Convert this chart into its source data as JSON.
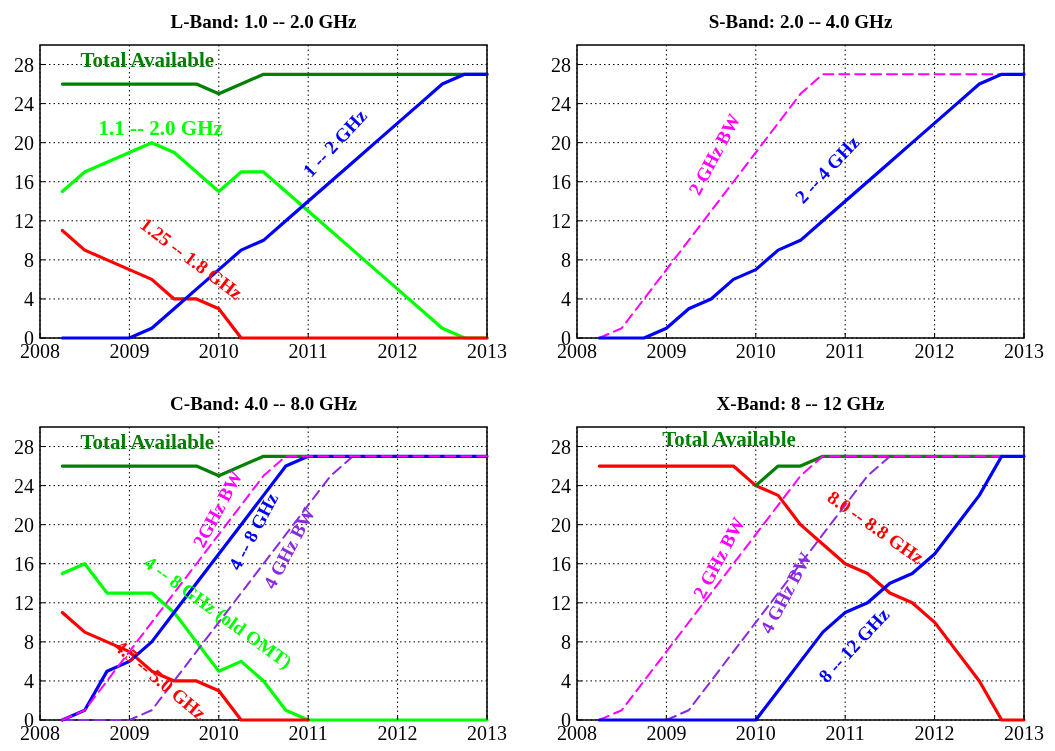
{
  "chart_data": [
    {
      "type": "line",
      "title": "L-Band:  1.0 -- 2.0 GHz",
      "x": [
        2008.25,
        2008.5,
        2008.75,
        2009,
        2009.25,
        2009.5,
        2009.75,
        2010,
        2010.25,
        2010.5,
        2010.75,
        2011,
        2011.25,
        2011.5,
        2011.75,
        2012,
        2012.25,
        2012.5,
        2012.75,
        2013
      ],
      "xlim": [
        2008,
        2013
      ],
      "ylim": [
        0,
        30
      ],
      "xticks": [
        2008,
        2009,
        2010,
        2011,
        2012,
        2013
      ],
      "yticks": [
        0,
        4,
        8,
        12,
        16,
        20,
        24,
        28
      ],
      "grid": true,
      "legend": false,
      "series": [
        {
          "name": "Total Available",
          "color": "#008000",
          "x": [
            2008.25,
            2009.75,
            2010,
            2010.5,
            2013
          ],
          "values": [
            26,
            26,
            25,
            27,
            27
          ]
        },
        {
          "name": "1.1 -- 2.0 GHz",
          "color": "#00ff00",
          "values": [
            15,
            17,
            18,
            19,
            20,
            19,
            17,
            15,
            17,
            17,
            15,
            13,
            11,
            9,
            7,
            5,
            3,
            1,
            0,
            0
          ]
        },
        {
          "name": "1.25 -- 1.8 GHz",
          "color": "#ff0000",
          "values": [
            11,
            9,
            8,
            7,
            6,
            4,
            4,
            3,
            0,
            0,
            0,
            0,
            0,
            0,
            0,
            0,
            0,
            0,
            0,
            0
          ]
        },
        {
          "name": "1 -- 2 GHz",
          "color": "#0000ff",
          "values": [
            0,
            0,
            0,
            0,
            1,
            3,
            5,
            7,
            9,
            10,
            12,
            14,
            16,
            18,
            20,
            22,
            24,
            26,
            27,
            27
          ]
        }
      ]
    },
    {
      "type": "line",
      "title": "S-Band:  2.0 -- 4.0 GHz",
      "x": [
        2008.25,
        2008.5,
        2008.75,
        2009,
        2009.25,
        2009.5,
        2009.75,
        2010,
        2010.25,
        2010.5,
        2010.75,
        2011,
        2011.25,
        2011.5,
        2011.75,
        2012,
        2012.25,
        2012.5,
        2012.75,
        2013
      ],
      "xlim": [
        2008,
        2013
      ],
      "ylim": [
        0,
        30
      ],
      "xticks": [
        2008,
        2009,
        2010,
        2011,
        2012,
        2013
      ],
      "yticks": [
        0,
        4,
        8,
        12,
        16,
        20,
        24,
        28
      ],
      "grid": true,
      "legend": false,
      "series": [
        {
          "name": "2 GHz BW",
          "color": "#ff00ff",
          "line_style": "dashed",
          "values": [
            0,
            1,
            4,
            7,
            10,
            13,
            16,
            19,
            22,
            25,
            27,
            27,
            27,
            27,
            27,
            27,
            27,
            27,
            27,
            27
          ]
        },
        {
          "name": "2 -- 4 GHz",
          "color": "#0000ff",
          "values": [
            0,
            0,
            0,
            1,
            3,
            4,
            6,
            7,
            9,
            10,
            12,
            14,
            16,
            18,
            20,
            22,
            24,
            26,
            27,
            27
          ]
        }
      ]
    },
    {
      "type": "line",
      "title": "C-Band:  4.0 -- 8.0 GHz",
      "x": [
        2008.25,
        2008.5,
        2008.75,
        2009,
        2009.25,
        2009.5,
        2009.75,
        2010,
        2010.25,
        2010.5,
        2010.75,
        2011,
        2011.25,
        2011.5,
        2011.75,
        2012,
        2012.25,
        2012.5,
        2012.75,
        2013
      ],
      "xlim": [
        2008,
        2013
      ],
      "ylim": [
        0,
        30
      ],
      "xticks": [
        2008,
        2009,
        2010,
        2011,
        2012,
        2013
      ],
      "yticks": [
        0,
        4,
        8,
        12,
        16,
        20,
        24,
        28
      ],
      "grid": true,
      "legend": false,
      "series": [
        {
          "name": "Total Available",
          "color": "#008000",
          "x": [
            2008.25,
            2009.75,
            2010,
            2010.5,
            2011
          ],
          "values": [
            26,
            26,
            25,
            27,
            27
          ]
        },
        {
          "name": "4 -- 8 GHz (old OMT)",
          "color": "#00ff00",
          "values": [
            15,
            16,
            13,
            13,
            13,
            11,
            8,
            5,
            6,
            4,
            1,
            0,
            0,
            0,
            0,
            0,
            0,
            0,
            0,
            0
          ]
        },
        {
          "name": "4.5 -- 5.0 GHz",
          "color": "#ff0000",
          "values": [
            11,
            9,
            8,
            7,
            5,
            4,
            4,
            3,
            0,
            0,
            0,
            0,
            null,
            null,
            null,
            null,
            null,
            null,
            null,
            null
          ]
        },
        {
          "name": "4 GHz BW",
          "color": "#8a2be2",
          "line_style": "dashed",
          "values": [
            0,
            0,
            0,
            0,
            1,
            4,
            7,
            10,
            13,
            16,
            19,
            22,
            25,
            27,
            null,
            null,
            null,
            null,
            null,
            null
          ]
        },
        {
          "name": "4 -- 8 GHz",
          "color": "#0000ff",
          "values": [
            0,
            1,
            5,
            6,
            8,
            11,
            14,
            17,
            20,
            23,
            26,
            27,
            27,
            27,
            27,
            27,
            27,
            27,
            27,
            27
          ]
        },
        {
          "name": "2GHz BW",
          "color": "#ff00ff",
          "line_style": "dashed",
          "values": [
            0,
            1,
            4,
            7,
            10,
            13,
            16,
            19,
            22,
            25,
            27,
            27,
            27,
            27,
            27,
            27,
            27,
            27,
            27,
            27
          ]
        }
      ]
    },
    {
      "type": "line",
      "title": "X-Band:  8 -- 12 GHz",
      "x": [
        2008.25,
        2008.5,
        2008.75,
        2009,
        2009.25,
        2009.5,
        2009.75,
        2010,
        2010.25,
        2010.5,
        2010.75,
        2011,
        2011.25,
        2011.5,
        2011.75,
        2012,
        2012.25,
        2012.5,
        2012.75,
        2013
      ],
      "xlim": [
        2008,
        2013
      ],
      "ylim": [
        0,
        30
      ],
      "xticks": [
        2008,
        2009,
        2010,
        2011,
        2012,
        2013
      ],
      "yticks": [
        0,
        4,
        8,
        12,
        16,
        20,
        24,
        28
      ],
      "grid": true,
      "legend": false,
      "series": [
        {
          "name": "4 GHz BW",
          "color": "#8a2be2",
          "line_style": "dashed",
          "values": [
            null,
            null,
            null,
            0,
            1,
            4,
            7,
            10,
            13,
            16,
            19,
            22,
            25,
            27,
            null,
            null,
            null,
            null,
            null,
            null
          ]
        },
        {
          "name": "8.0 -- 8.8 GHz",
          "color": "#ff0000",
          "values": [
            26,
            26,
            26,
            26,
            26,
            26,
            26,
            24,
            23,
            20,
            18,
            16,
            15,
            13,
            12,
            10,
            7,
            4,
            0,
            0
          ]
        },
        {
          "name": "Total Available",
          "color": "#008000",
          "x": [
            2010,
            2010.25,
            2010.5,
            2010.75,
            2012.75
          ],
          "values": [
            24,
            26,
            26,
            27,
            27
          ]
        },
        {
          "name": "2 GHz BW",
          "color": "#ff00ff",
          "line_style": "dashed",
          "values": [
            0,
            1,
            4,
            7,
            10,
            13,
            16,
            19,
            22,
            25,
            27,
            27,
            27,
            27,
            27,
            27,
            27,
            27,
            27,
            null
          ]
        },
        {
          "name": "8 -- 12 GHz",
          "color": "#0000ff",
          "values": [
            0,
            0,
            0,
            0,
            0,
            0,
            0,
            0,
            3,
            6,
            9,
            11,
            12,
            14,
            15,
            17,
            20,
            23,
            27,
            27
          ]
        }
      ]
    }
  ]
}
